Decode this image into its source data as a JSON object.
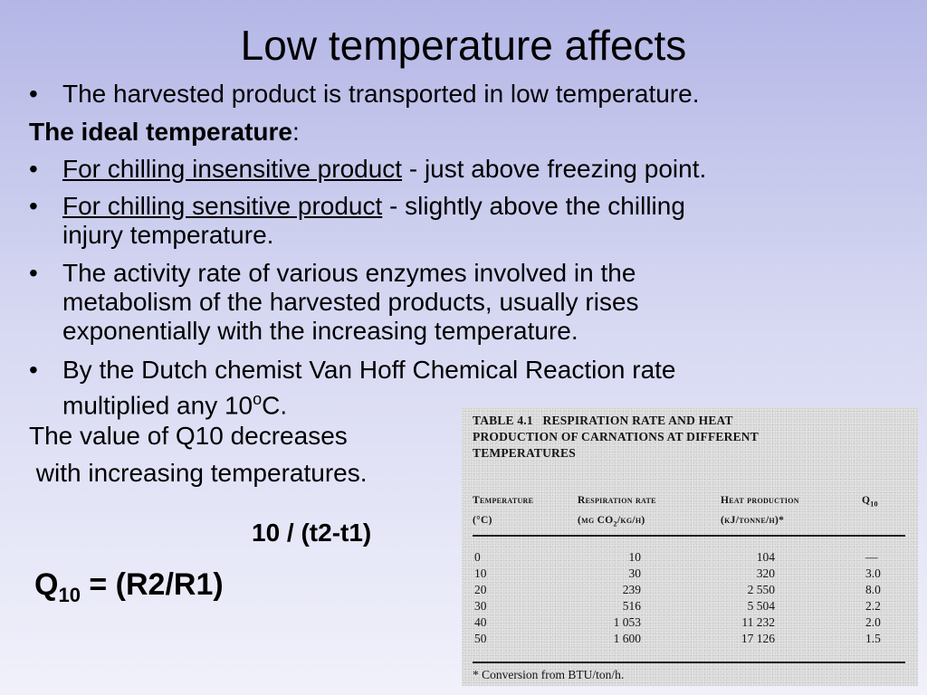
{
  "title": "Low temperature affects",
  "bullet_char": "•",
  "lines": {
    "transport": "The harvested product is transported in low temperature.",
    "ideal_heading": "The ideal temperature",
    "ideal_colon": ":",
    "insensitive_link": "For chilling insensitive product",
    "insensitive_rest": " - just above freezing point.",
    "sensitive_link": "For chilling sensitive product",
    "sensitive_rest_1": " - slightly above the chilling",
    "sensitive_rest_2": "injury temperature.",
    "enzyme_1": "The activity rate of various enzymes involved in the",
    "enzyme_2": "metabolism of the harvested products, usually rises",
    "enzyme_3": "exponentially with the increasing temperature.",
    "vanhoff_1": "By the Dutch chemist Van Hoff Chemical Reaction rate",
    "vanhoff_2a": "multiplied any 10",
    "vanhoff_2sup": "o",
    "vanhoff_2b": "C.",
    "q10_1": "The value of Q10 decreases",
    "q10_2": " with increasing temperatures."
  },
  "formula": {
    "exponent": "10 / (t2-t1)",
    "q": "Q",
    "q_sub": "10",
    "rhs": " = (R2/R1)"
  },
  "table": {
    "caption_line_1": "TABLE 4.1   RESPIRATION RATE AND HEAT",
    "caption_line_2": "PRODUCTION OF CARNATIONS AT DIFFERENT",
    "caption_line_3": "TEMPERATURES",
    "headers": {
      "temp_1": "Temperature",
      "temp_2": "(°C)",
      "resp_1": "Respiration rate",
      "resp_2a": "(mg CO",
      "resp_2sub": "2",
      "resp_2b": "/kg/h)",
      "heat_1": "Heat production",
      "heat_2": "(kJ/tonne/h)*",
      "q_1": "Q",
      "q_1sub": "10"
    },
    "rows": [
      {
        "temp": "0",
        "resp": "10",
        "heat": "104",
        "q10": "—"
      },
      {
        "temp": "10",
        "resp": "30",
        "heat": "320",
        "q10": "3.0"
      },
      {
        "temp": "20",
        "resp": "239",
        "heat": "2 550",
        "q10": "8.0"
      },
      {
        "temp": "30",
        "resp": "516",
        "heat": "5 504",
        "q10": "2.2"
      },
      {
        "temp": "40",
        "resp": "1 053",
        "heat": "11 232",
        "q10": "2.0"
      },
      {
        "temp": "50",
        "resp": "1 600",
        "heat": "17 126",
        "q10": "1.5"
      }
    ],
    "footnote": "* Conversion from BTU/ton/h."
  }
}
